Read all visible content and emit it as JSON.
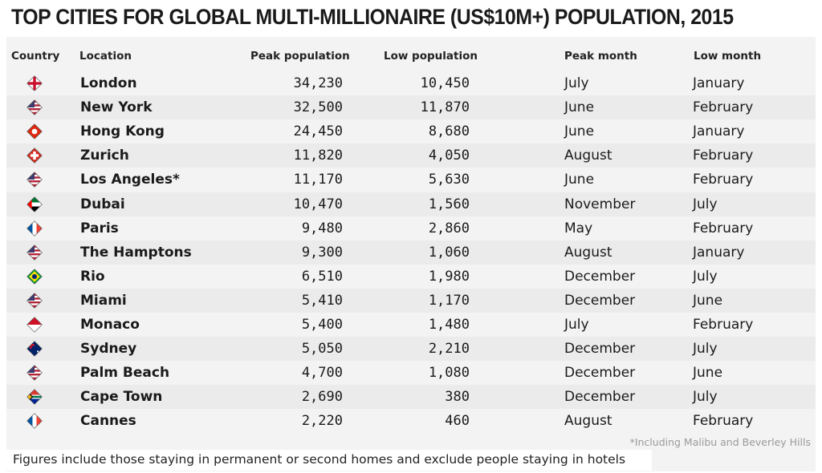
{
  "title": "TOP CITIES FOR GLOBAL MULTI-MILLIONAIRE (US$10M+) POPULATION, 2015",
  "headers": {
    "country": "Country",
    "location": "Location",
    "peak": "Peak population",
    "low": "Low population",
    "peak_month": "Peak month",
    "low_month": "Low month"
  },
  "chart_data": {
    "type": "table",
    "title": "TOP CITIES FOR GLOBAL MULTI-MILLIONAIRE (US$10M+) POPULATION, 2015",
    "columns": [
      "Country",
      "Location",
      "Peak population",
      "Low population",
      "Peak month",
      "Low month"
    ],
    "rows": [
      {
        "flag": "uk-flag-icon",
        "location": "London",
        "peak": "34,230",
        "low": "10,450",
        "peak_month": "July",
        "low_month": "January"
      },
      {
        "flag": "us-flag-icon",
        "location": "New York",
        "peak": "32,500",
        "low": "11,870",
        "peak_month": "June",
        "low_month": "February"
      },
      {
        "flag": "hong-kong-flag-icon",
        "location": "Hong Kong",
        "peak": "24,450",
        "low": "8,680",
        "peak_month": "June",
        "low_month": "January"
      },
      {
        "flag": "switzerland-flag-icon",
        "location": "Zurich",
        "peak": "11,820",
        "low": "4,050",
        "peak_month": "August",
        "low_month": "February"
      },
      {
        "flag": "us-flag-icon",
        "location": "Los Angeles*",
        "peak": "11,170",
        "low": "5,630",
        "peak_month": "June",
        "low_month": "February"
      },
      {
        "flag": "uae-flag-icon",
        "location": "Dubai",
        "peak": "10,470",
        "low": "1,560",
        "peak_month": "November",
        "low_month": "July"
      },
      {
        "flag": "france-flag-icon",
        "location": "Paris",
        "peak": "9,480",
        "low": "2,860",
        "peak_month": "May",
        "low_month": "February"
      },
      {
        "flag": "us-flag-icon",
        "location": "The Hamptons",
        "peak": "9,300",
        "low": "1,060",
        "peak_month": "August",
        "low_month": "January"
      },
      {
        "flag": "brazil-flag-icon",
        "location": "Rio",
        "peak": "6,510",
        "low": "1,980",
        "peak_month": "December",
        "low_month": "July"
      },
      {
        "flag": "us-flag-icon",
        "location": "Miami",
        "peak": "5,410",
        "low": "1,170",
        "peak_month": "December",
        "low_month": "June"
      },
      {
        "flag": "monaco-flag-icon",
        "location": "Monaco",
        "peak": "5,400",
        "low": "1,480",
        "peak_month": "July",
        "low_month": "February"
      },
      {
        "flag": "australia-flag-icon",
        "location": "Sydney",
        "peak": "5,050",
        "low": "2,210",
        "peak_month": "December",
        "low_month": "July"
      },
      {
        "flag": "us-flag-icon",
        "location": "Palm Beach",
        "peak": "4,700",
        "low": "1,080",
        "peak_month": "December",
        "low_month": "June"
      },
      {
        "flag": "south-africa-flag-icon",
        "location": "Cape Town",
        "peak": "2,690",
        "low": "380",
        "peak_month": "December",
        "low_month": "July"
      },
      {
        "flag": "france-flag-icon",
        "location": "Cannes",
        "peak": "2,220",
        "low": "460",
        "peak_month": "August",
        "low_month": "February"
      }
    ]
  },
  "footnote": "*Including Malibu and Beverley Hills",
  "caption": "Figures include those staying in permanent or second homes and exclude people staying in hotels"
}
